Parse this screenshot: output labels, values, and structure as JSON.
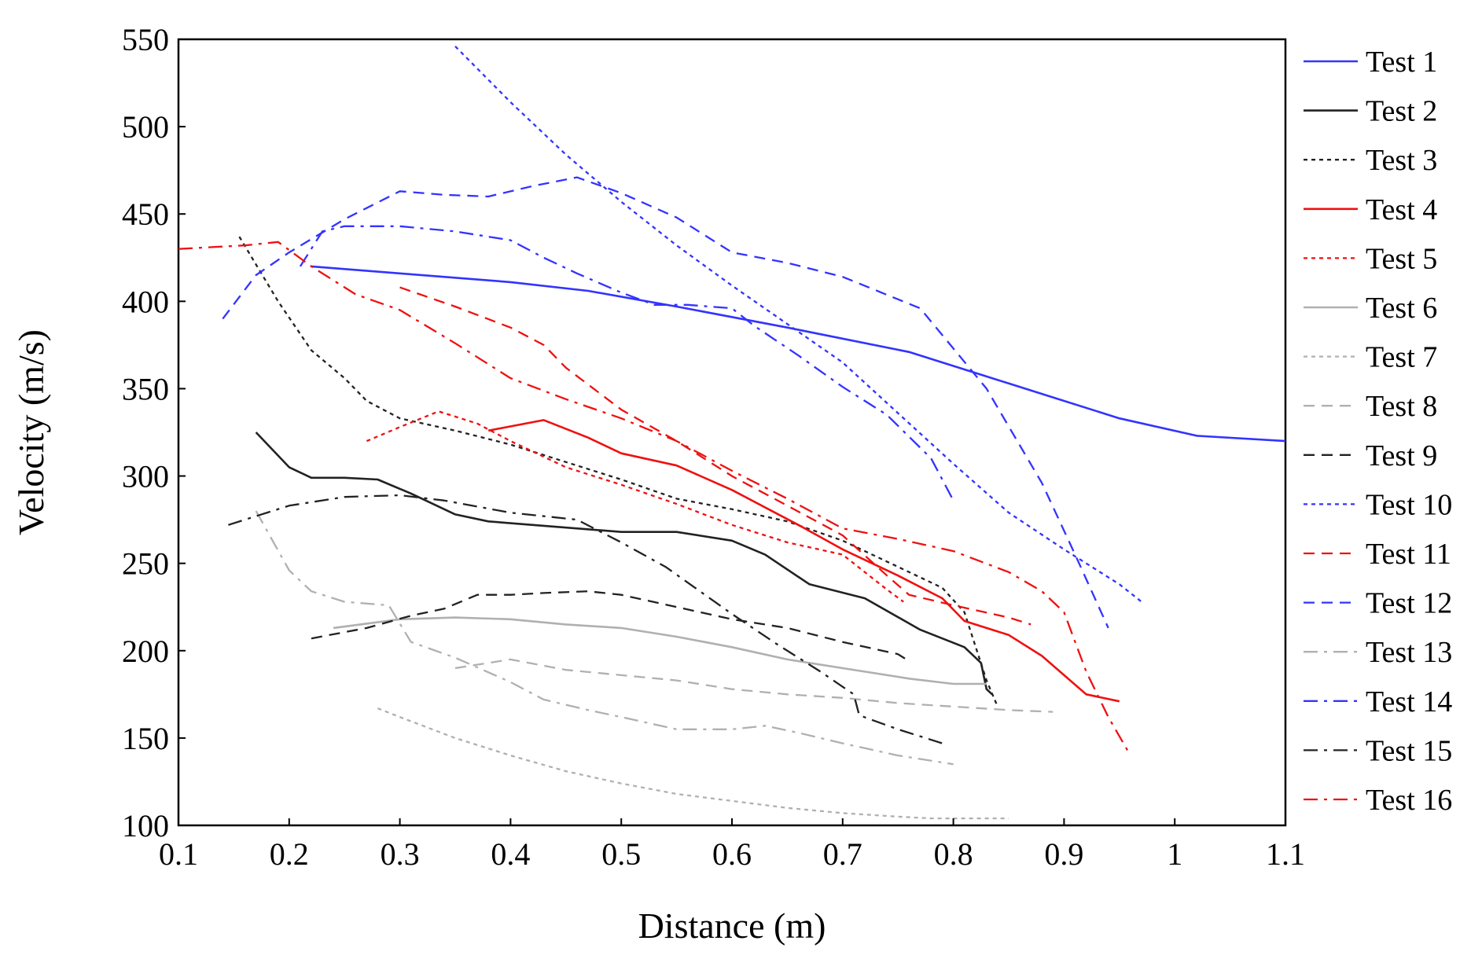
{
  "chart_data": {
    "type": "line",
    "title": "",
    "xlabel": "Distance (m)",
    "ylabel": "Velocity (m/s)",
    "xlim": [
      0.1,
      1.1
    ],
    "ylim": [
      100,
      550
    ],
    "xticks": [
      0.1,
      0.2,
      0.3,
      0.4,
      0.5,
      0.6,
      0.7,
      0.8,
      0.9,
      1,
      1.1
    ],
    "xtick_labels": [
      "0.1",
      "0.2",
      "0.3",
      "0.4",
      "0.5",
      "0.6",
      "0.7",
      "0.8",
      "0.9",
      "1",
      "1.1"
    ],
    "yticks": [
      100,
      150,
      200,
      250,
      300,
      350,
      400,
      450,
      500,
      550
    ],
    "ytick_labels": [
      "100",
      "150",
      "200",
      "250",
      "300",
      "350",
      "400",
      "450",
      "500",
      "550"
    ],
    "grid": false,
    "legend_position": "right",
    "series": [
      {
        "name": "Test 1",
        "color": "#3333ff",
        "dash": "solid",
        "x": [
          0.22,
          0.3,
          0.4,
          0.47,
          0.55,
          0.65,
          0.76,
          0.85,
          0.95,
          1.02,
          1.1
        ],
        "y": [
          420,
          416,
          411,
          406,
          397,
          385,
          371,
          353,
          333,
          323,
          320
        ]
      },
      {
        "name": "Test 2",
        "color": "#222222",
        "dash": "solid",
        "x": [
          0.17,
          0.2,
          0.22,
          0.25,
          0.28,
          0.31,
          0.35,
          0.38,
          0.42,
          0.5,
          0.55,
          0.6,
          0.63,
          0.67,
          0.72,
          0.77,
          0.81,
          0.825,
          0.83,
          0.835
        ],
        "y": [
          325,
          305,
          299,
          299,
          298,
          290,
          278,
          274,
          272,
          268,
          268,
          263,
          255,
          238,
          230,
          212,
          202,
          193,
          178,
          175
        ]
      },
      {
        "name": "Test 3",
        "color": "#222222",
        "dash": "dot",
        "x": [
          0.155,
          0.19,
          0.22,
          0.25,
          0.27,
          0.3,
          0.35,
          0.4,
          0.45,
          0.5,
          0.55,
          0.6,
          0.65,
          0.7,
          0.75,
          0.79,
          0.81,
          0.83,
          0.84
        ],
        "y": [
          437,
          400,
          372,
          356,
          343,
          333,
          326,
          318,
          308,
          298,
          287,
          281,
          274,
          263,
          248,
          236,
          222,
          183,
          168
        ]
      },
      {
        "name": "Test 4",
        "color": "#ee1111",
        "dash": "solid",
        "x": [
          0.38,
          0.43,
          0.47,
          0.5,
          0.55,
          0.6,
          0.66,
          0.7,
          0.75,
          0.79,
          0.81,
          0.85,
          0.88,
          0.9,
          0.92,
          0.95
        ],
        "y": [
          326,
          332,
          322,
          313,
          306,
          292,
          272,
          258,
          243,
          230,
          217,
          209,
          197,
          186,
          175,
          171
        ]
      },
      {
        "name": "Test 5",
        "color": "#ee1111",
        "dash": "dot",
        "x": [
          0.27,
          0.3,
          0.335,
          0.37,
          0.4,
          0.45,
          0.5,
          0.55,
          0.6,
          0.65,
          0.7,
          0.74,
          0.755
        ],
        "y": [
          320,
          328,
          337,
          330,
          320,
          305,
          295,
          284,
          272,
          262,
          255,
          235,
          228
        ]
      },
      {
        "name": "Test 6",
        "color": "#b0b0b0",
        "dash": "solid",
        "x": [
          0.24,
          0.3,
          0.35,
          0.4,
          0.45,
          0.5,
          0.55,
          0.6,
          0.65,
          0.7,
          0.76,
          0.8,
          0.83
        ],
        "y": [
          213,
          218,
          219,
          218,
          215,
          213,
          208,
          202,
          195,
          190,
          184,
          181,
          181
        ]
      },
      {
        "name": "Test 7",
        "color": "#b0b0b0",
        "dash": "dot",
        "x": [
          0.28,
          0.3,
          0.35,
          0.4,
          0.45,
          0.5,
          0.55,
          0.6,
          0.65,
          0.7,
          0.75,
          0.78,
          0.8,
          0.85
        ],
        "y": [
          167,
          162,
          150,
          140,
          131,
          124,
          118,
          114,
          110,
          107,
          105,
          104,
          104,
          104
        ]
      },
      {
        "name": "Test 8",
        "color": "#b0b0b0",
        "dash": "dash",
        "x": [
          0.35,
          0.4,
          0.45,
          0.5,
          0.55,
          0.6,
          0.65,
          0.7,
          0.75,
          0.8,
          0.85,
          0.89
        ],
        "y": [
          190,
          195,
          189,
          186,
          183,
          178,
          175,
          173,
          170,
          168,
          166,
          165
        ]
      },
      {
        "name": "Test 9",
        "color": "#222222",
        "dash": "dash",
        "x": [
          0.22,
          0.27,
          0.31,
          0.34,
          0.37,
          0.4,
          0.43,
          0.47,
          0.5,
          0.55,
          0.6,
          0.65,
          0.7,
          0.75,
          0.76
        ],
        "y": [
          207,
          213,
          220,
          224,
          232,
          232,
          233,
          234,
          232,
          225,
          218,
          213,
          205,
          198,
          194
        ]
      },
      {
        "name": "Test 10",
        "color": "#3333ff",
        "dash": "dot",
        "x": [
          0.35,
          0.4,
          0.45,
          0.5,
          0.55,
          0.6,
          0.65,
          0.7,
          0.75,
          0.8,
          0.85,
          0.9,
          0.95,
          0.97
        ],
        "y": [
          546,
          514,
          484,
          457,
          432,
          409,
          387,
          365,
          336,
          307,
          279,
          258,
          238,
          228
        ]
      },
      {
        "name": "Test 11",
        "color": "#ee1111",
        "dash": "dash",
        "x": [
          0.3,
          0.35,
          0.4,
          0.43,
          0.45,
          0.5,
          0.55,
          0.6,
          0.65,
          0.7,
          0.74,
          0.76,
          0.8,
          0.85,
          0.87
        ],
        "y": [
          408,
          397,
          385,
          375,
          362,
          338,
          320,
          300,
          283,
          266,
          243,
          232,
          226,
          219,
          215
        ]
      },
      {
        "name": "Test 12",
        "color": "#3333ff",
        "dash": "dash",
        "x": [
          0.14,
          0.17,
          0.2,
          0.25,
          0.3,
          0.34,
          0.38,
          0.42,
          0.46,
          0.5,
          0.55,
          0.6,
          0.65,
          0.7,
          0.77,
          0.83,
          0.88,
          0.91,
          0.94
        ],
        "y": [
          390,
          415,
          428,
          447,
          463,
          461,
          460,
          466,
          471,
          462,
          448,
          428,
          422,
          414,
          396,
          350,
          296,
          255,
          213
        ]
      },
      {
        "name": "Test 13",
        "color": "#b0b0b0",
        "dash": "dashdot",
        "x": [
          0.17,
          0.2,
          0.22,
          0.25,
          0.29,
          0.31,
          0.35,
          0.4,
          0.43,
          0.47,
          0.5,
          0.55,
          0.6,
          0.63,
          0.66,
          0.7,
          0.75,
          0.8
        ],
        "y": [
          280,
          246,
          234,
          228,
          226,
          205,
          196,
          182,
          172,
          166,
          162,
          155,
          155,
          157,
          153,
          147,
          140,
          135
        ]
      },
      {
        "name": "Test 14",
        "color": "#3333ff",
        "dash": "dashdot",
        "x": [
          0.21,
          0.23,
          0.25,
          0.3,
          0.35,
          0.4,
          0.43,
          0.46,
          0.5,
          0.53,
          0.56,
          0.6,
          0.62,
          0.66,
          0.7,
          0.74,
          0.78,
          0.8
        ],
        "y": [
          420,
          440,
          443,
          443,
          440,
          435,
          425,
          416,
          405,
          398,
          398,
          396,
          386,
          369,
          351,
          335,
          310,
          286
        ]
      },
      {
        "name": "Test 15",
        "color": "#222222",
        "dash": "dashdot",
        "x": [
          0.145,
          0.2,
          0.25,
          0.3,
          0.34,
          0.4,
          0.46,
          0.5,
          0.54,
          0.6,
          0.64,
          0.68,
          0.71,
          0.715,
          0.75,
          0.79
        ],
        "y": [
          272,
          283,
          288,
          289,
          286,
          279,
          275,
          262,
          248,
          221,
          204,
          188,
          175,
          163,
          155,
          147
        ]
      },
      {
        "name": "Test 16",
        "color": "#ee1111",
        "dash": "dashdot",
        "x": [
          0.1,
          0.13,
          0.16,
          0.19,
          0.22,
          0.26,
          0.3,
          0.35,
          0.4,
          0.45,
          0.5,
          0.55,
          0.6,
          0.65,
          0.7,
          0.75,
          0.8,
          0.85,
          0.88,
          0.9,
          0.92,
          0.94,
          0.96
        ],
        "y": [
          430,
          431,
          432,
          434,
          420,
          404,
          395,
          376,
          356,
          344,
          333,
          320,
          303,
          287,
          270,
          264,
          257,
          245,
          234,
          222,
          188,
          162,
          140
        ]
      }
    ]
  }
}
